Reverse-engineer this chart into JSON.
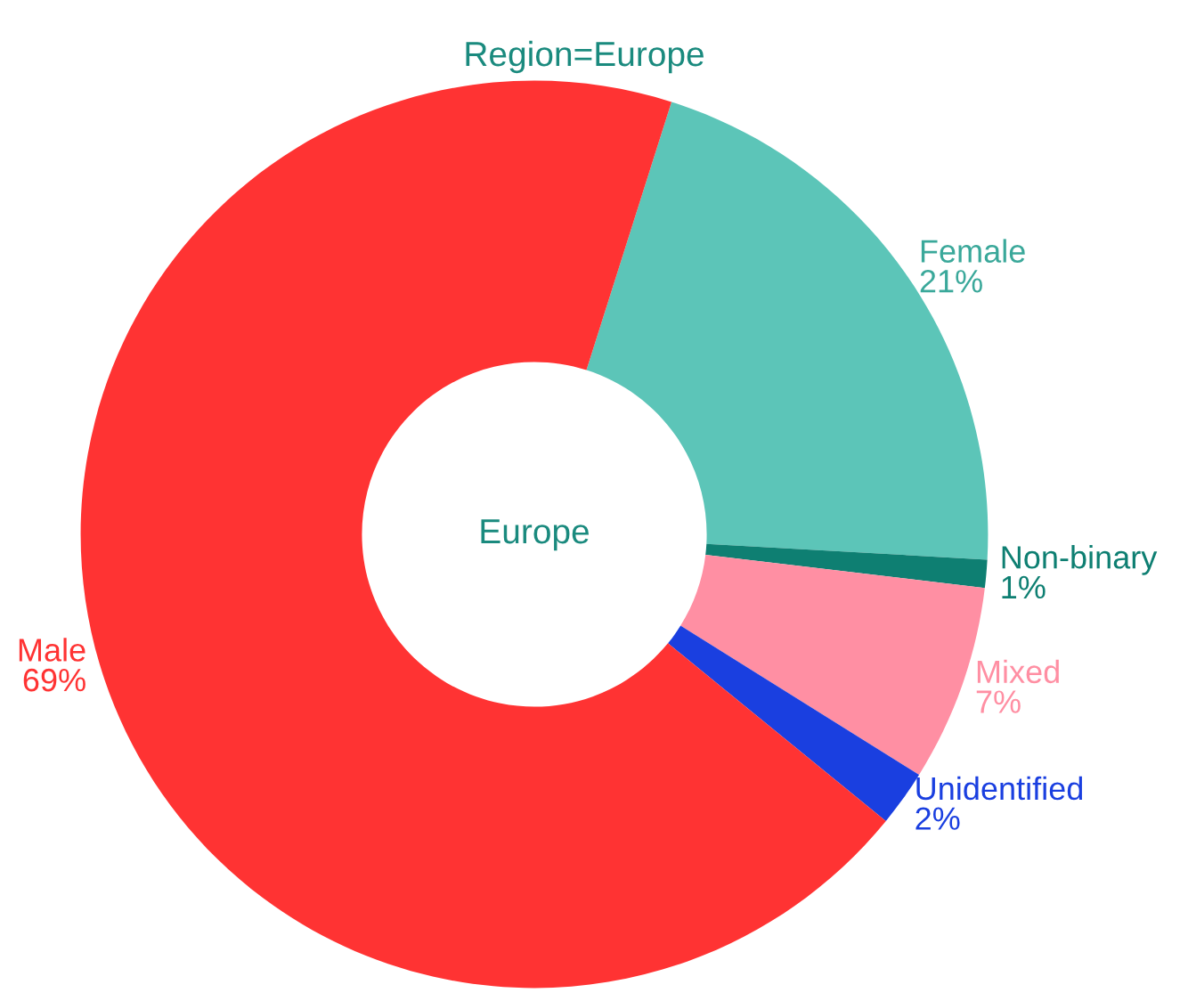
{
  "chart_data": {
    "type": "donut",
    "title": "Region=Europe",
    "categories": [
      "Female",
      "Non-binary",
      "Mixed",
      "Unidentified",
      "Male"
    ],
    "values": [
      21,
      1,
      7,
      2,
      69
    ],
    "value_labels": [
      "21%",
      "1%",
      "7%",
      "2%",
      "69%"
    ],
    "colors": [
      "#5cc5b8",
      "#0e7f72",
      "#ff8fa3",
      "#1a3fe0",
      "#ff3333"
    ],
    "annotations": [
      "Europe"
    ]
  }
}
